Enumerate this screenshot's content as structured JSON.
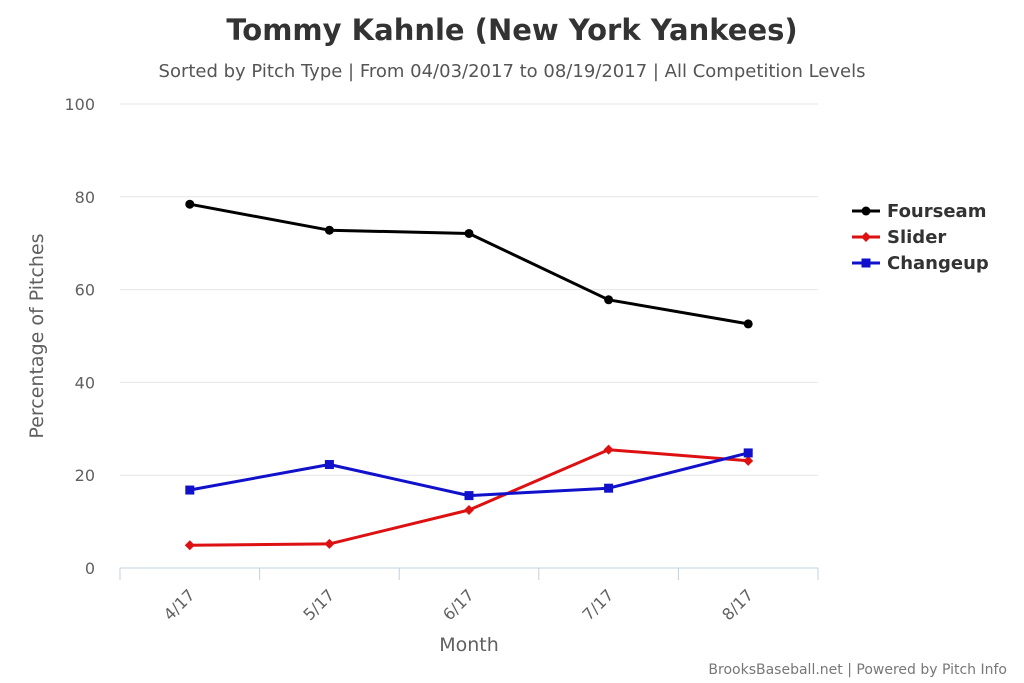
{
  "chart_data": {
    "type": "line",
    "title": "Tommy Kahnle (New York Yankees)",
    "subtitle": "Sorted by Pitch Type | From 04/03/2017 to 08/19/2017 | All Competition Levels",
    "xlabel": "Month",
    "ylabel": "Percentage of Pitches",
    "categories": [
      "4/17",
      "5/17",
      "6/17",
      "7/17",
      "8/17"
    ],
    "ylim": [
      0,
      100
    ],
    "yticks": [
      0,
      20,
      40,
      60,
      80,
      100
    ],
    "grid": true,
    "legend_position": "right",
    "series": [
      {
        "name": "Fourseam",
        "color": "#000000",
        "marker": "circle",
        "values": [
          78.4,
          72.8,
          72.1,
          57.8,
          52.6
        ]
      },
      {
        "name": "Slider",
        "color": "#dd1111",
        "marker": "diamond",
        "values": [
          4.9,
          5.2,
          12.5,
          25.5,
          23.1
        ]
      },
      {
        "name": "Changeup",
        "color": "#1111cc",
        "marker": "square",
        "values": [
          16.8,
          22.3,
          15.6,
          17.2,
          24.8
        ]
      }
    ]
  },
  "credits": "BrooksBaseball.net | Powered by Pitch Info"
}
